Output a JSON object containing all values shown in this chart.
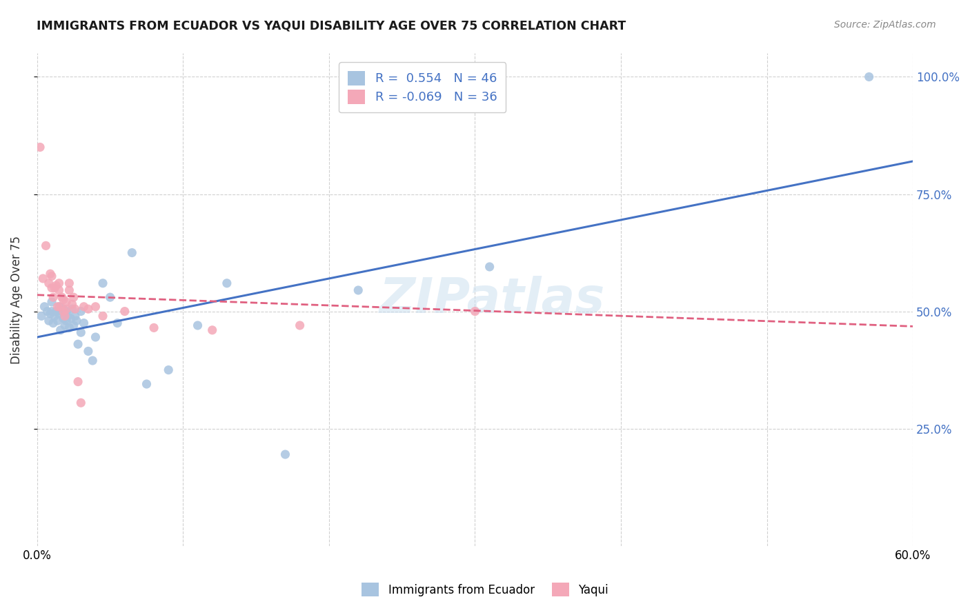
{
  "title": "IMMIGRANTS FROM ECUADOR VS YAQUI DISABILITY AGE OVER 75 CORRELATION CHART",
  "source": "Source: ZipAtlas.com",
  "ylabel": "Disability Age Over 75",
  "xmin": 0.0,
  "xmax": 0.6,
  "ymin": 0.0,
  "ymax": 1.05,
  "yticks": [
    0.25,
    0.5,
    0.75,
    1.0
  ],
  "ytick_labels": [
    "25.0%",
    "50.0%",
    "75.0%",
    "100.0%"
  ],
  "xticks": [
    0.0,
    0.1,
    0.2,
    0.3,
    0.4,
    0.5,
    0.6
  ],
  "xtick_labels": [
    "0.0%",
    "",
    "",
    "",
    "",
    "",
    "60.0%"
  ],
  "ecuador_color": "#a8c4e0",
  "yaqui_color": "#f4a8b8",
  "ecuador_line_color": "#4472c4",
  "yaqui_line_color": "#e06080",
  "R_ecuador": 0.554,
  "N_ecuador": 46,
  "R_yaqui": -0.069,
  "N_yaqui": 36,
  "ecuador_x": [
    0.003,
    0.005,
    0.007,
    0.008,
    0.009,
    0.01,
    0.01,
    0.011,
    0.012,
    0.013,
    0.014,
    0.015,
    0.015,
    0.016,
    0.017,
    0.018,
    0.018,
    0.019,
    0.02,
    0.02,
    0.021,
    0.022,
    0.023,
    0.024,
    0.025,
    0.026,
    0.027,
    0.028,
    0.03,
    0.03,
    0.032,
    0.035,
    0.038,
    0.04,
    0.045,
    0.05,
    0.055,
    0.065,
    0.075,
    0.09,
    0.11,
    0.13,
    0.17,
    0.22,
    0.31,
    0.57
  ],
  "ecuador_y": [
    0.49,
    0.51,
    0.5,
    0.48,
    0.495,
    0.5,
    0.52,
    0.475,
    0.49,
    0.5,
    0.48,
    0.495,
    0.51,
    0.46,
    0.5,
    0.485,
    0.505,
    0.47,
    0.48,
    0.5,
    0.49,
    0.465,
    0.485,
    0.505,
    0.47,
    0.49,
    0.48,
    0.43,
    0.455,
    0.5,
    0.475,
    0.415,
    0.395,
    0.445,
    0.56,
    0.53,
    0.475,
    0.625,
    0.345,
    0.375,
    0.47,
    0.56,
    0.195,
    0.545,
    0.595,
    1.0
  ],
  "yaqui_x": [
    0.002,
    0.004,
    0.006,
    0.008,
    0.009,
    0.01,
    0.01,
    0.011,
    0.012,
    0.013,
    0.014,
    0.015,
    0.015,
    0.016,
    0.017,
    0.018,
    0.018,
    0.019,
    0.02,
    0.02,
    0.022,
    0.022,
    0.024,
    0.025,
    0.026,
    0.028,
    0.03,
    0.032,
    0.035,
    0.04,
    0.045,
    0.06,
    0.08,
    0.12,
    0.18,
    0.3
  ],
  "yaqui_y": [
    0.85,
    0.57,
    0.64,
    0.56,
    0.58,
    0.55,
    0.575,
    0.53,
    0.55,
    0.555,
    0.51,
    0.545,
    0.56,
    0.51,
    0.53,
    0.5,
    0.525,
    0.49,
    0.505,
    0.52,
    0.545,
    0.56,
    0.515,
    0.53,
    0.505,
    0.35,
    0.305,
    0.51,
    0.505,
    0.51,
    0.49,
    0.5,
    0.465,
    0.46,
    0.47,
    0.5
  ],
  "ecuador_line_y0": 0.445,
  "ecuador_line_y1": 0.82,
  "yaqui_line_y0": 0.535,
  "yaqui_line_y1": 0.468,
  "watermark": "ZIPatlas",
  "background_color": "#ffffff"
}
